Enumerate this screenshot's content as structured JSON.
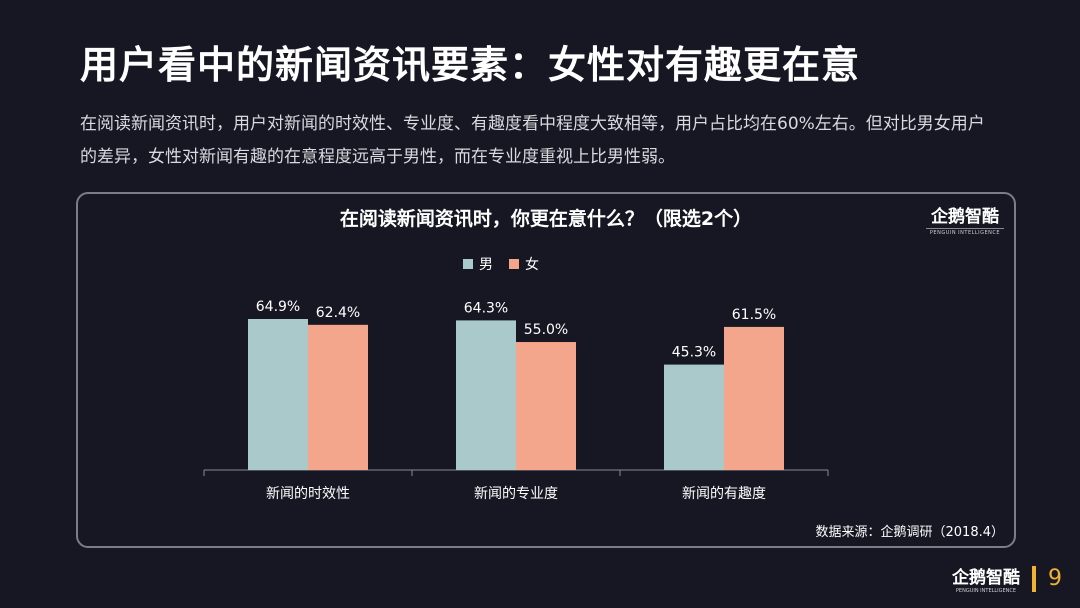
{
  "header": {
    "title": "用户看中的新闻资讯要素：女性对有趣更在意",
    "description": "在阅读新闻资讯时，用户对新闻的时效性、专业度、有趣度看中程度大致相等，用户占比均在60%左右。但对比男女用户的差异，女性对新闻有趣的在意程度远高于男性，而在专业度重视上比男性弱。"
  },
  "brand": {
    "name": "企鹅智酷",
    "sub": "PENGUIN INTELLIGENCE"
  },
  "source": "数据来源：企鹅调研（2018.4）",
  "footer": {
    "page": "9"
  },
  "colors": {
    "male": "#a9c9cb",
    "female": "#f3a68b",
    "accent": "#f0b232"
  },
  "chart_data": {
    "type": "bar",
    "title": "在阅读新闻资讯时，你更在意什么？（限选2个）",
    "categories": [
      "新闻的时效性",
      "新闻的专业度",
      "新闻的有趣度"
    ],
    "series": [
      {
        "name": "男",
        "values": [
          64.9,
          64.3,
          45.3
        ],
        "labels": [
          "64.9%",
          "64.3%",
          "45.3%"
        ]
      },
      {
        "name": "女",
        "values": [
          62.4,
          55.0,
          61.5
        ],
        "labels": [
          "62.4%",
          "55.0%",
          "61.5%"
        ]
      }
    ],
    "ylim": [
      0,
      100
    ],
    "grid": false,
    "legend": "top-center"
  }
}
